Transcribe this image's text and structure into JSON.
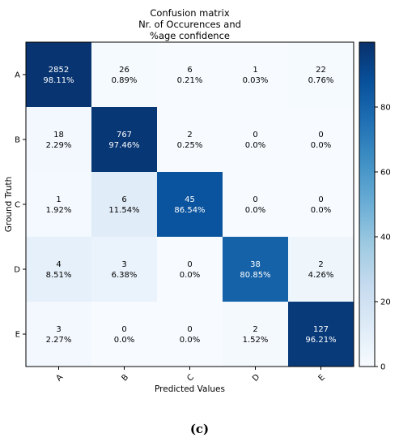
{
  "chart_data": {
    "type": "heatmap",
    "title": [
      "Confusion matrix",
      "Nr. of Occurences and",
      "%age confidence"
    ],
    "xlabel": "Predicted Values",
    "ylabel": "Ground Truth",
    "x_categories": [
      "A",
      "B",
      "C",
      "D",
      "E"
    ],
    "y_categories": [
      "A",
      "B",
      "C",
      "D",
      "E"
    ],
    "counts": [
      [
        2852,
        26,
        6,
        1,
        22
      ],
      [
        18,
        767,
        2,
        0,
        0
      ],
      [
        1,
        6,
        45,
        0,
        0
      ],
      [
        4,
        3,
        0,
        38,
        2
      ],
      [
        3,
        0,
        0,
        2,
        127
      ]
    ],
    "percent_labels": [
      [
        "98.11%",
        "0.89%",
        "0.21%",
        "0.03%",
        "0.76%"
      ],
      [
        "2.29%",
        "97.46%",
        "0.25%",
        "0.0%",
        "0.0%"
      ],
      [
        "1.92%",
        "11.54%",
        "86.54%",
        "0.0%",
        "0.0%"
      ],
      [
        "8.51%",
        "6.38%",
        "0.0%",
        "80.85%",
        "4.26%"
      ],
      [
        "2.27%",
        "0.0%",
        "0.0%",
        "1.52%",
        "96.21%"
      ]
    ],
    "colorbar": {
      "min": 0,
      "max": 100,
      "ticks": [
        0,
        20,
        40,
        60,
        80
      ],
      "colormap": "Blues"
    }
  },
  "caption": "(c)"
}
